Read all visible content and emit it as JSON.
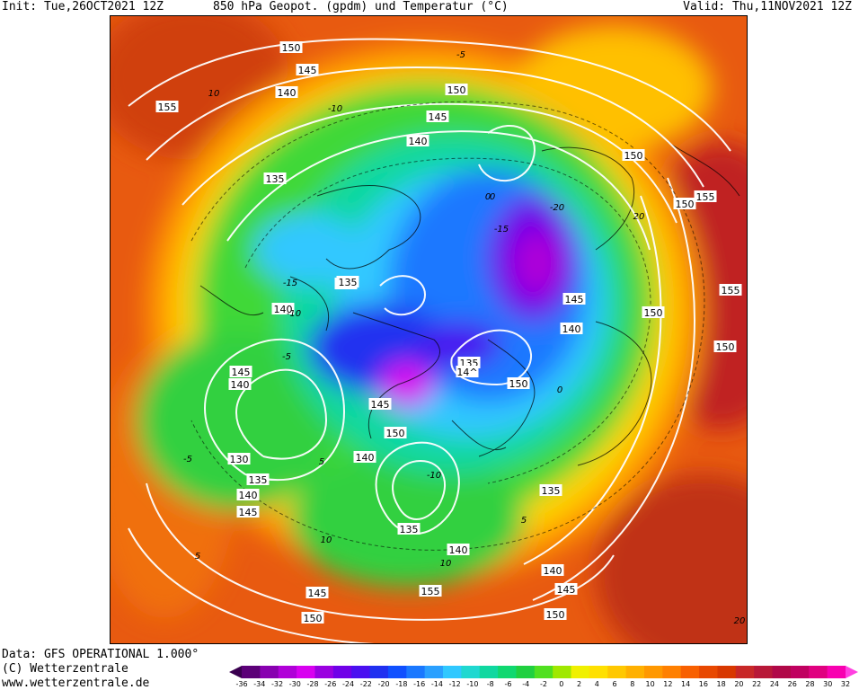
{
  "header": {
    "init": "Init: Tue,26OCT2021 12Z",
    "title": "850 hPa Geopot. (gpdm) und Temperatur (°C)",
    "valid": "Valid: Thu,11NOV2021 12Z"
  },
  "footer": {
    "data_source": "Data: GFS OPERATIONAL 1.000°",
    "copyright": "(C) Wetterzentrale",
    "url": "www.wetterzentrale.de"
  },
  "colorbar": {
    "ticks": [
      "-36",
      "-34",
      "-32",
      "-30",
      "-28",
      "-26",
      "-24",
      "-22",
      "-20",
      "-18",
      "-16",
      "-14",
      "-12",
      "-10",
      "-8",
      "-6",
      "-4",
      "-2",
      "0",
      "2",
      "4",
      "6",
      "8",
      "10",
      "12",
      "14",
      "16",
      "18",
      "20",
      "22",
      "24",
      "26",
      "28",
      "30",
      "32"
    ],
    "colors": [
      "#3a004f",
      "#5c0078",
      "#8800b0",
      "#b000d8",
      "#d800f0",
      "#9a00e0",
      "#7000e8",
      "#4a10f0",
      "#2030f0",
      "#1050ff",
      "#1a78ff",
      "#2aa0ff",
      "#30c8ff",
      "#20d8d0",
      "#10d8a0",
      "#10d870",
      "#20d040",
      "#50e020",
      "#a0e800",
      "#f0f000",
      "#ffe000",
      "#ffc800",
      "#ffb000",
      "#ff9800",
      "#ff8000",
      "#f86000",
      "#e84800",
      "#d83800",
      "#c82828",
      "#b81838",
      "#b00848",
      "#c00060",
      "#e00080",
      "#f800b0",
      "#ff40e0"
    ]
  },
  "map": {
    "geopotential_labels": [
      "150",
      "145",
      "140",
      "155",
      "135",
      "150",
      "145",
      "140",
      "150",
      "155",
      "150",
      "155",
      "145",
      "140",
      "150",
      "150",
      "135",
      "140",
      "135",
      "14^",
      "140",
      "145",
      "145",
      "140",
      "150",
      "150",
      "140",
      "130",
      "135",
      "140",
      "145",
      "135",
      "135",
      "140",
      "140",
      "145",
      "155",
      "145",
      "150",
      "150"
    ],
    "temperature_labels": [
      "10",
      "-5",
      "-10",
      "0",
      "-15",
      "-20",
      "-15",
      "-10",
      "-5",
      "0",
      "5",
      "10",
      "20",
      "-5",
      "5",
      "-10",
      "0",
      "5",
      "10",
      "20"
    ]
  }
}
